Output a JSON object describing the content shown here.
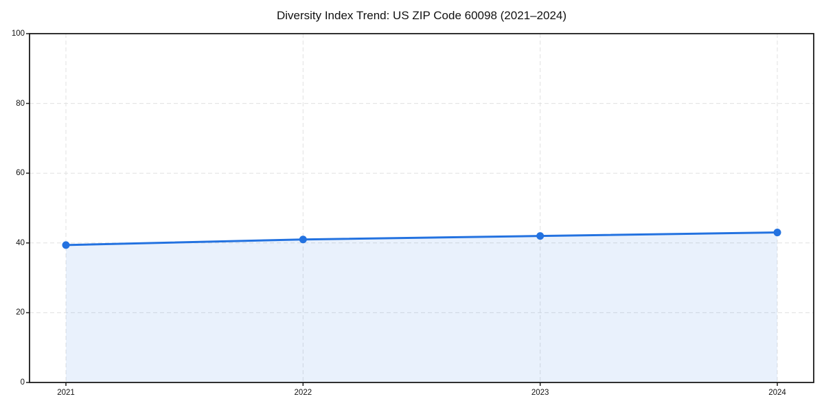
{
  "chart_data": {
    "type": "area",
    "title": "Diversity Index Trend: US ZIP Code 60098 (2021–2024)",
    "x": [
      "2021",
      "2022",
      "2023",
      "2024"
    ],
    "series": [
      {
        "name": "Diversity Index",
        "values": [
          39.4,
          41.0,
          42.0,
          43.0
        ]
      }
    ],
    "xlabel": "",
    "ylabel": "",
    "ylim": [
      0,
      100
    ],
    "yticks": [
      0,
      20,
      40,
      60,
      80,
      100
    ],
    "grid": "dashed, both axes",
    "legend": "none",
    "colors": {
      "line": "#2372e0",
      "marker": "#2372e0",
      "fill": "rgba(35,114,224,0.10)",
      "grid": "#e0e0e0",
      "spine": "#1a1a1a",
      "text": "#111111",
      "background": "#ffffff"
    }
  }
}
